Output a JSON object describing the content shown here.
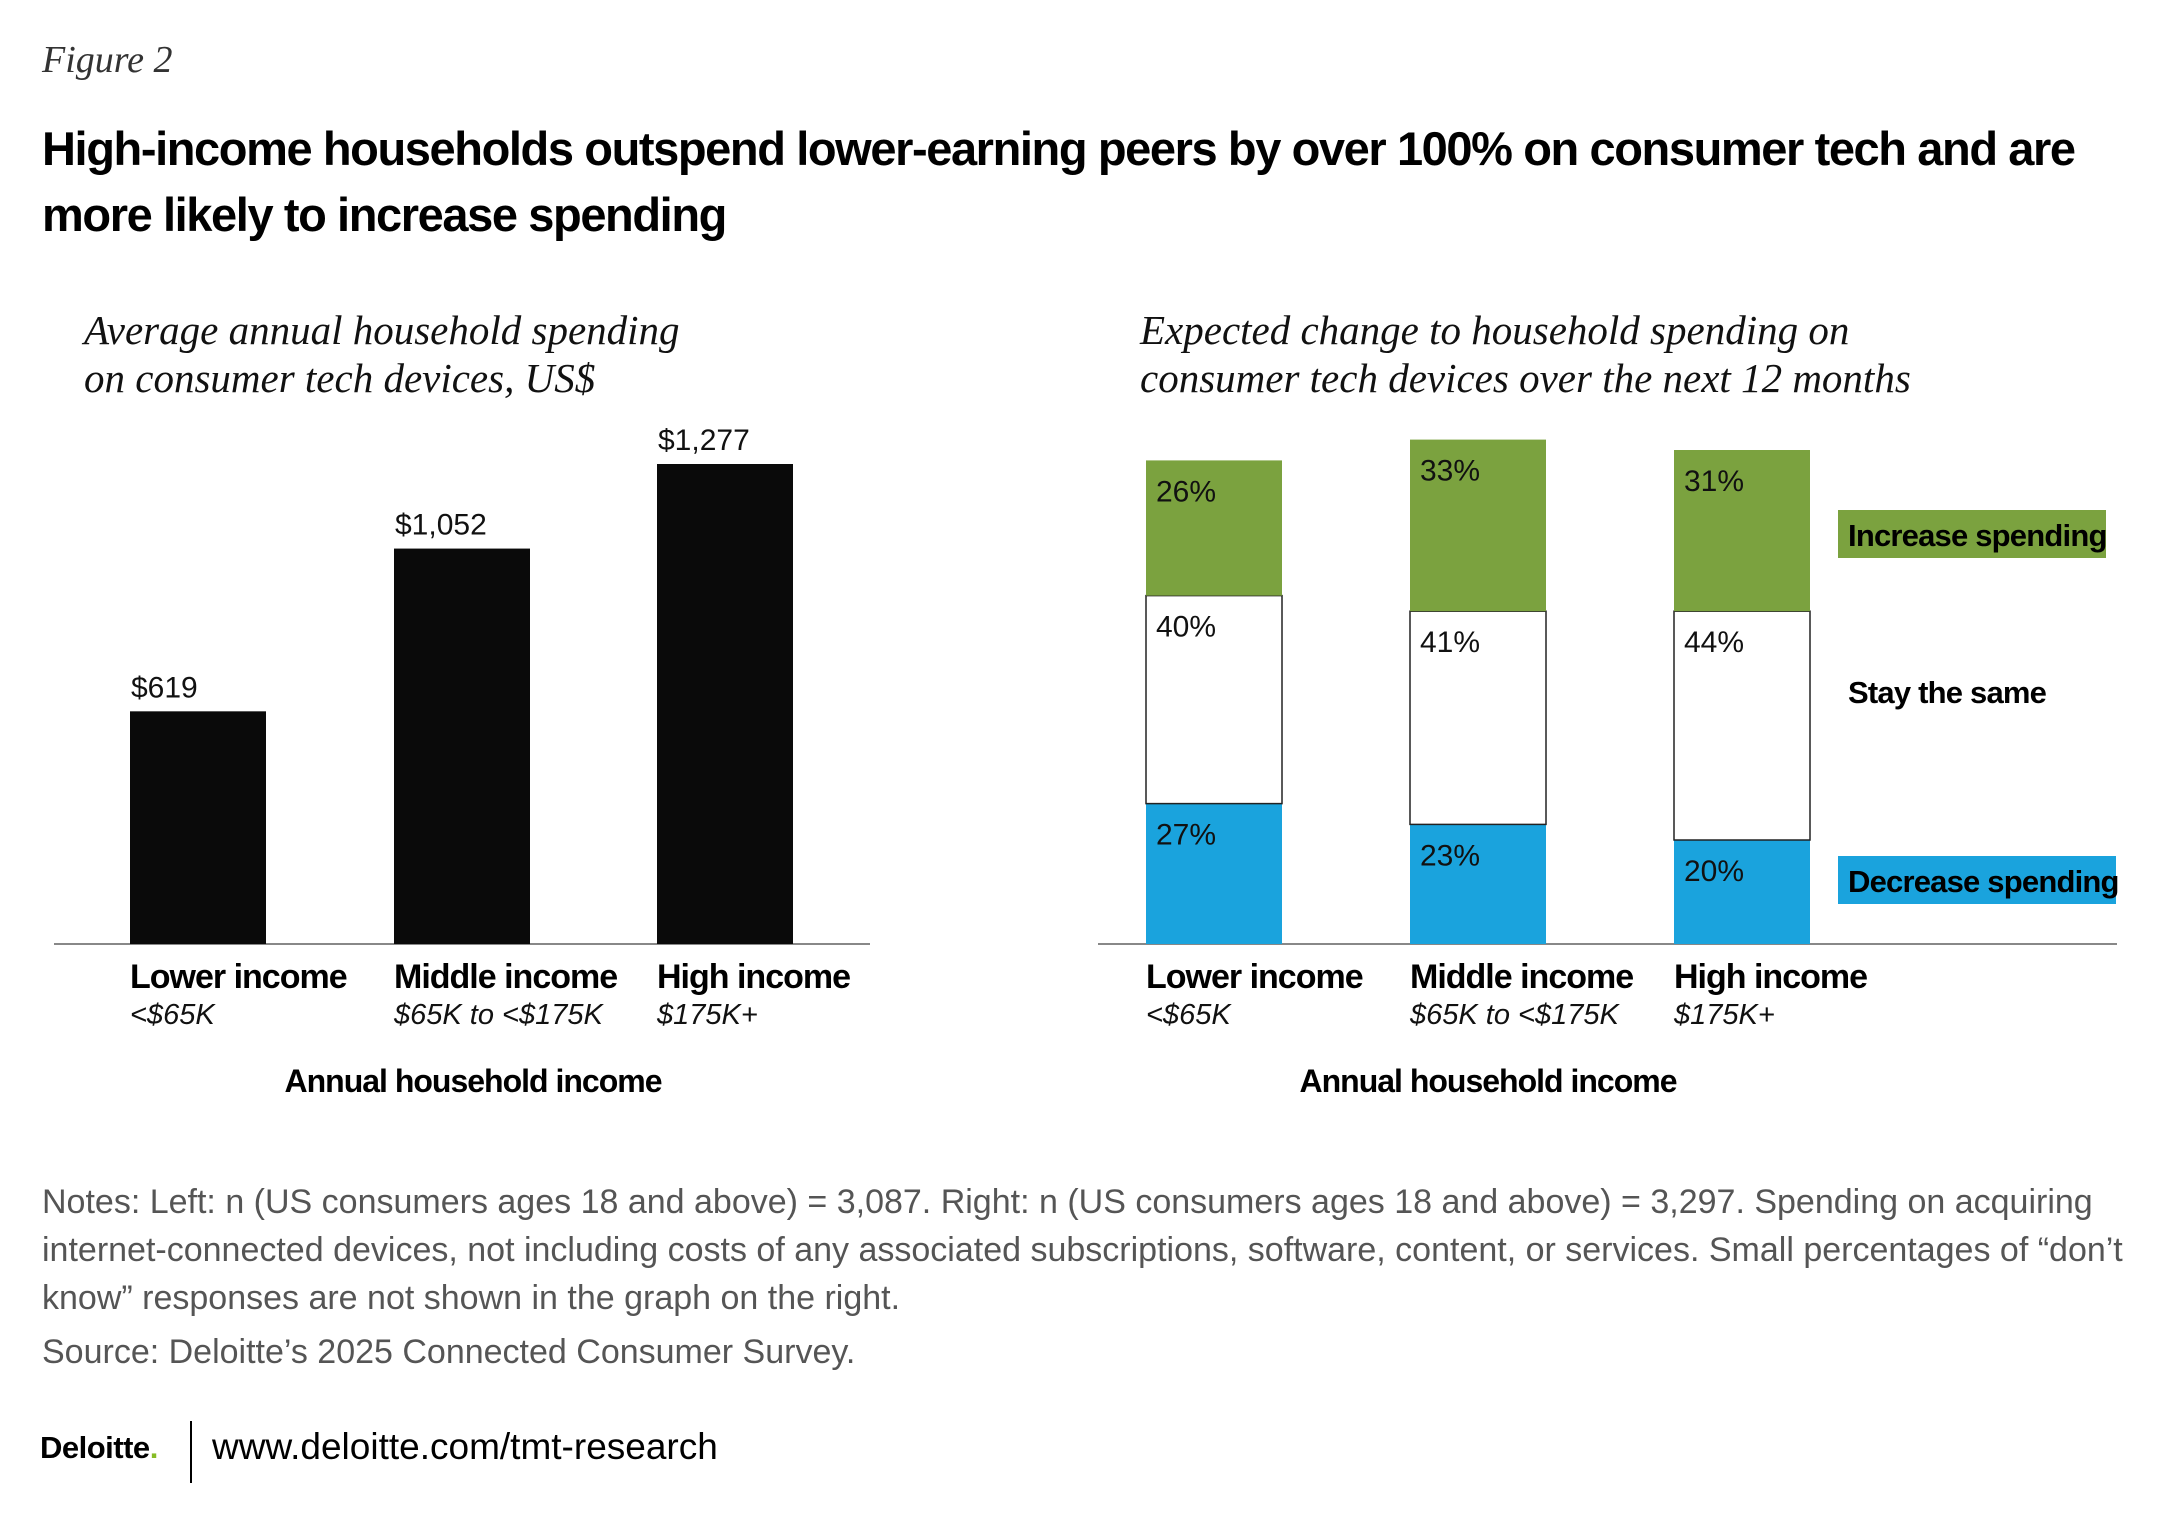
{
  "figure_label": "Figure 2",
  "headline": "High-income households outspend lower-earning peers by over 100% on consumer tech and are more likely to increase spending",
  "chart_data": [
    {
      "type": "bar",
      "title": "Average annual household spending on consumer tech devices, US$",
      "title_lines": [
        "Average annual household spending",
        "on consumer tech devices, US$"
      ],
      "categories": [
        "Lower income",
        "Middle income",
        "High income"
      ],
      "category_sublabels": [
        "<$65K",
        "$65K to <$175K",
        "$175K+"
      ],
      "values": [
        619,
        1052,
        1277
      ],
      "value_labels": [
        "$619",
        "$1,052",
        "$1,277"
      ],
      "xlabel": "Annual household income",
      "ylabel": "",
      "ylim": [
        0,
        1277
      ],
      "grid": false,
      "colors": {
        "bar": "#0a0a0a",
        "axis": "#888888"
      }
    },
    {
      "type": "bar",
      "stacked": true,
      "title": "Expected change to household spending on consumer tech devices over the next 12 months",
      "title_lines": [
        "Expected change to household spending on",
        "consumer tech devices over the next 12 months"
      ],
      "categories": [
        "Lower income",
        "Middle income",
        "High income"
      ],
      "category_sublabels": [
        "<$65K",
        "$65K to <$175K",
        "$175K+"
      ],
      "series": [
        {
          "name": "Decrease spending",
          "values": [
            27,
            23,
            20
          ],
          "labels": [
            "27%",
            "23%",
            "20%"
          ],
          "color": "#1AA3DD"
        },
        {
          "name": "Stay the same",
          "values": [
            40,
            41,
            44
          ],
          "labels": [
            "40%",
            "41%",
            "44%"
          ],
          "color": "#FFFFFF"
        },
        {
          "name": "Increase spending",
          "values": [
            26,
            33,
            31
          ],
          "labels": [
            "26%",
            "33%",
            "31%"
          ],
          "color": "#7BA23F"
        }
      ],
      "legend": "right",
      "xlabel": "Annual household income",
      "ylim": [
        0,
        100
      ],
      "grid": false
    }
  ],
  "notes": "Notes: Left: n (US consumers ages 18 and above) = 3,087. Right:  n (US consumers ages 18 and above) = 3,297. Spending on acquiring internet-connected devices, not including costs of any associated subscriptions, software, content, or services. Small percentages of “don’t know” responses are not shown in the graph on the right.",
  "source": "Source: Deloitte’s 2025 Connected Consumer Survey.",
  "footer": {
    "brand": "Deloitte",
    "brand_dot": ".",
    "link": "www.deloitte.com/tmt-research"
  }
}
